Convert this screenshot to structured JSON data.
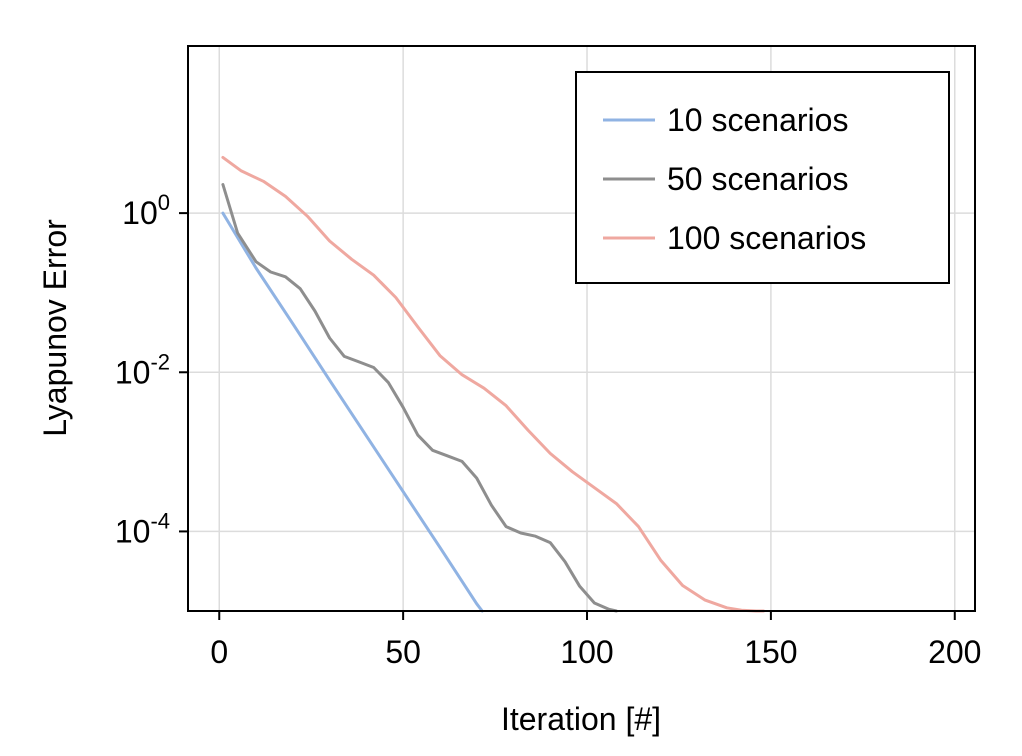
{
  "chart_data": {
    "type": "line",
    "title": "",
    "xlabel": "Iteration [#]",
    "ylabel": "Lyapunov Error",
    "xlim": [
      -8.5,
      205.5
    ],
    "ylim": [
      -5.0,
      2.1
    ],
    "yscale": "log10",
    "xticks": [
      0,
      50,
      100,
      150,
      200
    ],
    "xtick_labels": [
      "0",
      "50",
      "100",
      "150",
      "200"
    ],
    "yticks": [
      0,
      -2,
      -4
    ],
    "ytick_labels": [
      {
        "base": "10",
        "exp": "0"
      },
      {
        "base": "10",
        "exp": "-2"
      },
      {
        "base": "10",
        "exp": "-4"
      }
    ],
    "grid": true,
    "legend_position": "top-right",
    "series": [
      {
        "name": "10 scenarios",
        "color": "#90b3e3",
        "x": [
          1,
          10,
          20,
          30,
          40,
          50,
          60,
          70,
          71.5
        ],
        "y": [
          0.0,
          -0.69,
          -1.39,
          -2.1,
          -2.8,
          -3.5,
          -4.2,
          -4.91,
          -5.0
        ]
      },
      {
        "name": "50 scenarios",
        "color": "#8e8e8e",
        "x": [
          1,
          5,
          10,
          14,
          18,
          22,
          26,
          30,
          34,
          38,
          42,
          46,
          50,
          54,
          58,
          62,
          66,
          70,
          74,
          78,
          82,
          86,
          90,
          94,
          98,
          102,
          106,
          108
        ],
        "y": [
          0.36,
          -0.25,
          -0.61,
          -0.74,
          -0.8,
          -0.95,
          -1.23,
          -1.57,
          -1.8,
          -1.87,
          -1.94,
          -2.13,
          -2.44,
          -2.79,
          -2.98,
          -3.05,
          -3.12,
          -3.33,
          -3.67,
          -3.94,
          -4.02,
          -4.06,
          -4.14,
          -4.38,
          -4.69,
          -4.9,
          -4.98,
          -5.0
        ]
      },
      {
        "name": "100 scenarios",
        "color": "#efa8a0",
        "x": [
          1,
          6,
          12,
          18,
          24,
          30,
          36,
          42,
          48,
          54,
          60,
          66,
          72,
          78,
          84,
          90,
          96,
          102,
          108,
          114,
          120,
          126,
          132,
          138,
          142,
          146,
          148
        ],
        "y": [
          0.7,
          0.53,
          0.4,
          0.21,
          -0.04,
          -0.35,
          -0.58,
          -0.78,
          -1.06,
          -1.43,
          -1.79,
          -2.03,
          -2.2,
          -2.42,
          -2.73,
          -3.02,
          -3.25,
          -3.45,
          -3.65,
          -3.94,
          -4.36,
          -4.68,
          -4.86,
          -4.96,
          -4.99,
          -5.0,
          -5.0
        ]
      }
    ]
  }
}
